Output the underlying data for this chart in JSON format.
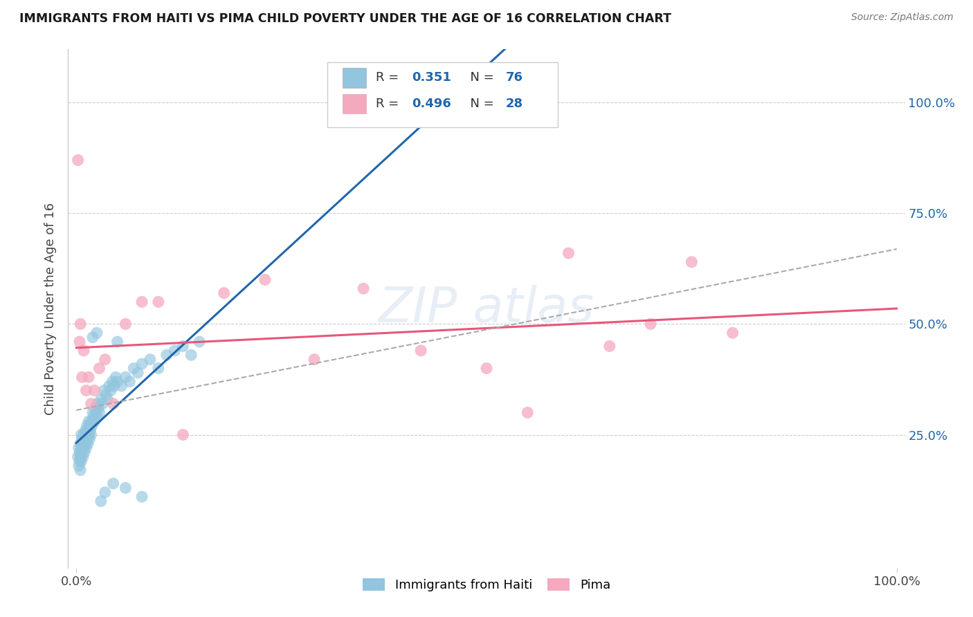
{
  "title": "IMMIGRANTS FROM HAITI VS PIMA CHILD POVERTY UNDER THE AGE OF 16 CORRELATION CHART",
  "source": "Source: ZipAtlas.com",
  "ylabel": "Child Poverty Under the Age of 16",
  "legend1_label": "Immigrants from Haiti",
  "legend2_label": "Pima",
  "r1": 0.351,
  "n1": 76,
  "r2": 0.496,
  "n2": 28,
  "color_blue": "#92c5de",
  "color_pink": "#f4a9be",
  "color_line_blue": "#2166ac",
  "color_line_pink": "#e8567a",
  "color_line_dashed": "#aaaaaa",
  "blue_x": [
    0.002,
    0.003,
    0.003,
    0.004,
    0.004,
    0.005,
    0.005,
    0.005,
    0.006,
    0.006,
    0.006,
    0.007,
    0.007,
    0.008,
    0.008,
    0.009,
    0.009,
    0.01,
    0.01,
    0.011,
    0.011,
    0.012,
    0.012,
    0.013,
    0.013,
    0.014,
    0.014,
    0.015,
    0.015,
    0.016,
    0.016,
    0.017,
    0.018,
    0.018,
    0.019,
    0.02,
    0.021,
    0.022,
    0.023,
    0.024,
    0.025,
    0.026,
    0.027,
    0.028,
    0.03,
    0.032,
    0.034,
    0.036,
    0.038,
    0.04,
    0.042,
    0.044,
    0.046,
    0.048,
    0.05,
    0.055,
    0.06,
    0.065,
    0.07,
    0.075,
    0.08,
    0.09,
    0.1,
    0.11,
    0.12,
    0.13,
    0.14,
    0.15,
    0.02,
    0.025,
    0.03,
    0.035,
    0.045,
    0.05,
    0.06,
    0.08
  ],
  "blue_y": [
    0.2,
    0.22,
    0.18,
    0.21,
    0.19,
    0.23,
    0.2,
    0.17,
    0.22,
    0.25,
    0.19,
    0.21,
    0.24,
    0.2,
    0.23,
    0.22,
    0.25,
    0.21,
    0.24,
    0.23,
    0.26,
    0.22,
    0.25,
    0.24,
    0.27,
    0.23,
    0.26,
    0.25,
    0.28,
    0.24,
    0.27,
    0.26,
    0.25,
    0.28,
    0.27,
    0.3,
    0.29,
    0.28,
    0.31,
    0.3,
    0.29,
    0.32,
    0.31,
    0.3,
    0.33,
    0.32,
    0.35,
    0.34,
    0.33,
    0.36,
    0.35,
    0.37,
    0.36,
    0.38,
    0.37,
    0.36,
    0.38,
    0.37,
    0.4,
    0.39,
    0.41,
    0.42,
    0.4,
    0.43,
    0.44,
    0.45,
    0.43,
    0.46,
    0.47,
    0.48,
    0.1,
    0.12,
    0.14,
    0.46,
    0.13,
    0.11
  ],
  "pink_x": [
    0.002,
    0.004,
    0.005,
    0.007,
    0.009,
    0.012,
    0.015,
    0.018,
    0.022,
    0.028,
    0.035,
    0.045,
    0.06,
    0.08,
    0.1,
    0.13,
    0.18,
    0.23,
    0.29,
    0.35,
    0.42,
    0.5,
    0.6,
    0.7,
    0.8,
    0.65,
    0.55,
    0.75
  ],
  "pink_y": [
    0.87,
    0.46,
    0.5,
    0.38,
    0.44,
    0.35,
    0.38,
    0.32,
    0.35,
    0.4,
    0.42,
    0.32,
    0.5,
    0.55,
    0.55,
    0.25,
    0.57,
    0.6,
    0.42,
    0.58,
    0.44,
    0.4,
    0.66,
    0.5,
    0.48,
    0.45,
    0.3,
    0.64
  ]
}
